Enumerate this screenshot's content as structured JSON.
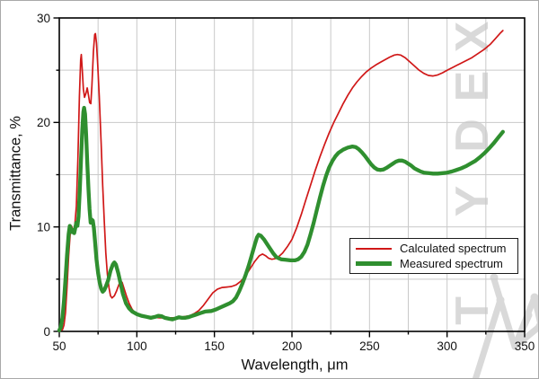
{
  "watermark": {
    "text": "TYDEX"
  },
  "colors": {
    "background": "#ffffff",
    "grid": "#c9c9c9",
    "axis": "#000000",
    "tick_label": "#111111",
    "watermark": "#d9d9d9"
  },
  "chart_data": {
    "type": "line",
    "title": "",
    "xlabel": "Wavelength, μm",
    "ylabel": "Transmittance, %",
    "xlim": [
      50,
      350
    ],
    "ylim": [
      0,
      30
    ],
    "x_major_ticks": [
      50,
      100,
      150,
      200,
      250,
      300,
      350
    ],
    "x_minor_tick_step": 25,
    "y_major_ticks": [
      0,
      10,
      20,
      30
    ],
    "y_minor_tick_step": 5,
    "grid": true,
    "grid_step": {
      "x": 25,
      "y": 5
    },
    "legend_position": "middle-right",
    "series": [
      {
        "name": "Calculated spectrum",
        "color": "#d01818",
        "width": 1.7,
        "points": [
          [
            50,
            0.1
          ],
          [
            52,
            0.15
          ],
          [
            53,
            0.6
          ],
          [
            54,
            1.8
          ],
          [
            55,
            4.2
          ],
          [
            56,
            7.2
          ],
          [
            57,
            9.3
          ],
          [
            57.8,
            10.1
          ],
          [
            58.6,
            9.8
          ],
          [
            59.2,
            9.5
          ],
          [
            60,
            10.2
          ],
          [
            61,
            12
          ],
          [
            62,
            16.5
          ],
          [
            63,
            22.5
          ],
          [
            63.8,
            26.0
          ],
          [
            64.2,
            26.5
          ],
          [
            64.8,
            25.0
          ],
          [
            65.5,
            23.2
          ],
          [
            66.3,
            22.4
          ],
          [
            67.2,
            22.8
          ],
          [
            68,
            23.3
          ],
          [
            68.8,
            22.6
          ],
          [
            69.6,
            21.9
          ],
          [
            70.3,
            21.8
          ],
          [
            71,
            23.5
          ],
          [
            72,
            26.8
          ],
          [
            72.8,
            28.4
          ],
          [
            73.3,
            28.5
          ],
          [
            74,
            27.6
          ],
          [
            74.8,
            25.5
          ],
          [
            75.8,
            22.5
          ],
          [
            77,
            18.0
          ],
          [
            78,
            14.0
          ],
          [
            79,
            10.5
          ],
          [
            80,
            7.5
          ],
          [
            81,
            5.5
          ],
          [
            82,
            4.2
          ],
          [
            83,
            3.4
          ],
          [
            84,
            3.2
          ],
          [
            85.5,
            3.4
          ],
          [
            87,
            3.9
          ],
          [
            88.5,
            4.5
          ],
          [
            89.5,
            4.8
          ],
          [
            90.5,
            4.7
          ],
          [
            92,
            4.0
          ],
          [
            93.5,
            3.3
          ],
          [
            95,
            2.7
          ],
          [
            97,
            2.1
          ],
          [
            99,
            1.75
          ],
          [
            102,
            1.5
          ],
          [
            106,
            1.4
          ],
          [
            110,
            1.35
          ],
          [
            115,
            1.3
          ],
          [
            120,
            1.3
          ],
          [
            125,
            1.3
          ],
          [
            130,
            1.4
          ],
          [
            134,
            1.5
          ],
          [
            137,
            1.7
          ],
          [
            140,
            2.0
          ],
          [
            143,
            2.5
          ],
          [
            146,
            3.1
          ],
          [
            149,
            3.7
          ],
          [
            152,
            4.05
          ],
          [
            155,
            4.2
          ],
          [
            158,
            4.25
          ],
          [
            161,
            4.3
          ],
          [
            164,
            4.45
          ],
          [
            167,
            4.8
          ],
          [
            170,
            5.3
          ],
          [
            173,
            6.0
          ],
          [
            176,
            6.7
          ],
          [
            179,
            7.25
          ],
          [
            181,
            7.4
          ],
          [
            183,
            7.25
          ],
          [
            185,
            7.0
          ],
          [
            187,
            6.9
          ],
          [
            189,
            6.95
          ],
          [
            191,
            7.1
          ],
          [
            194,
            7.5
          ],
          [
            197,
            8.1
          ],
          [
            200,
            8.8
          ],
          [
            203,
            9.9
          ],
          [
            206,
            11.2
          ],
          [
            209,
            12.6
          ],
          [
            212,
            14.0
          ],
          [
            215,
            15.4
          ],
          [
            218,
            16.7
          ],
          [
            221,
            17.9
          ],
          [
            224,
            19.0
          ],
          [
            227,
            20.0
          ],
          [
            230,
            20.9
          ],
          [
            233,
            21.8
          ],
          [
            236,
            22.6
          ],
          [
            239,
            23.3
          ],
          [
            242,
            23.9
          ],
          [
            245,
            24.4
          ],
          [
            248,
            24.85
          ],
          [
            251,
            25.2
          ],
          [
            254,
            25.5
          ],
          [
            257,
            25.75
          ],
          [
            260,
            26.0
          ],
          [
            263,
            26.25
          ],
          [
            266,
            26.45
          ],
          [
            268,
            26.5
          ],
          [
            270,
            26.45
          ],
          [
            273,
            26.2
          ],
          [
            276,
            25.8
          ],
          [
            279,
            25.4
          ],
          [
            282,
            25.0
          ],
          [
            285,
            24.7
          ],
          [
            288,
            24.5
          ],
          [
            291,
            24.45
          ],
          [
            294,
            24.55
          ],
          [
            297,
            24.75
          ],
          [
            300,
            25.0
          ],
          [
            304,
            25.3
          ],
          [
            308,
            25.6
          ],
          [
            312,
            25.9
          ],
          [
            316,
            26.2
          ],
          [
            320,
            26.6
          ],
          [
            324,
            27.0
          ],
          [
            328,
            27.5
          ],
          [
            331,
            28.0
          ],
          [
            334,
            28.5
          ],
          [
            336,
            28.8
          ]
        ]
      },
      {
        "name": "Measured spectrum",
        "color": "#2f8f2f",
        "width": 4.3,
        "points": [
          [
            50,
            0.1
          ],
          [
            51,
            0.4
          ],
          [
            52,
            1.3
          ],
          [
            53,
            2.9
          ],
          [
            54,
            5.0
          ],
          [
            55,
            7.3
          ],
          [
            56,
            9.3
          ],
          [
            56.8,
            10.1
          ],
          [
            57.5,
            9.8
          ],
          [
            58.3,
            9.5
          ],
          [
            59,
            9.7
          ],
          [
            59.6,
            9.4
          ],
          [
            60.3,
            9.9
          ],
          [
            61,
            10.4
          ],
          [
            61.7,
            10.1
          ],
          [
            62.4,
            11.0
          ],
          [
            63.2,
            13.5
          ],
          [
            64,
            16.5
          ],
          [
            64.8,
            19.3
          ],
          [
            65.5,
            21.0
          ],
          [
            66,
            21.4
          ],
          [
            66.6,
            20.8
          ],
          [
            67.3,
            18.8
          ],
          [
            68,
            16.2
          ],
          [
            68.8,
            13.6
          ],
          [
            69.5,
            11.7
          ],
          [
            70.2,
            10.4
          ],
          [
            70.9,
            10.7
          ],
          [
            71.6,
            10.6
          ],
          [
            72.3,
            9.9
          ],
          [
            73,
            8.7
          ],
          [
            74,
            6.9
          ],
          [
            75,
            5.6
          ],
          [
            76,
            4.7
          ],
          [
            77,
            4.1
          ],
          [
            78,
            3.8
          ],
          [
            79,
            3.95
          ],
          [
            80,
            4.3
          ],
          [
            81.5,
            4.9
          ],
          [
            83,
            5.8
          ],
          [
            84.5,
            6.4
          ],
          [
            85.5,
            6.6
          ],
          [
            86.5,
            6.4
          ],
          [
            88,
            5.6
          ],
          [
            89.5,
            4.6
          ],
          [
            91,
            3.6
          ],
          [
            93,
            2.7
          ],
          [
            95,
            2.2
          ],
          [
            97,
            1.9
          ],
          [
            100,
            1.65
          ],
          [
            103,
            1.5
          ],
          [
            106,
            1.4
          ],
          [
            109,
            1.3
          ],
          [
            112,
            1.4
          ],
          [
            114,
            1.5
          ],
          [
            116,
            1.45
          ],
          [
            118,
            1.3
          ],
          [
            121,
            1.2
          ],
          [
            123,
            1.15
          ],
          [
            125,
            1.25
          ],
          [
            127,
            1.35
          ],
          [
            129,
            1.3
          ],
          [
            131,
            1.3
          ],
          [
            133,
            1.35
          ],
          [
            135,
            1.45
          ],
          [
            138,
            1.6
          ],
          [
            141,
            1.75
          ],
          [
            144,
            1.9
          ],
          [
            148,
            1.95
          ],
          [
            151,
            2.1
          ],
          [
            154,
            2.3
          ],
          [
            157,
            2.5
          ],
          [
            160,
            2.7
          ],
          [
            162,
            2.9
          ],
          [
            164,
            3.25
          ],
          [
            166,
            3.85
          ],
          [
            168,
            4.55
          ],
          [
            170,
            5.35
          ],
          [
            172,
            6.25
          ],
          [
            174,
            7.25
          ],
          [
            176,
            8.3
          ],
          [
            177.5,
            9.0
          ],
          [
            178.5,
            9.25
          ],
          [
            180,
            9.15
          ],
          [
            182,
            8.8
          ],
          [
            184,
            8.35
          ],
          [
            186,
            7.9
          ],
          [
            188,
            7.45
          ],
          [
            190,
            7.1
          ],
          [
            193,
            6.9
          ],
          [
            196,
            6.85
          ],
          [
            199,
            6.8
          ],
          [
            202,
            6.8
          ],
          [
            204,
            6.9
          ],
          [
            206,
            7.15
          ],
          [
            208,
            7.6
          ],
          [
            210,
            8.3
          ],
          [
            212,
            9.3
          ],
          [
            214,
            10.4
          ],
          [
            216,
            11.6
          ],
          [
            218,
            12.8
          ],
          [
            220,
            13.9
          ],
          [
            222,
            14.9
          ],
          [
            224,
            15.7
          ],
          [
            226,
            16.3
          ],
          [
            228,
            16.75
          ],
          [
            230,
            17.1
          ],
          [
            233,
            17.4
          ],
          [
            236,
            17.6
          ],
          [
            239,
            17.7
          ],
          [
            241,
            17.65
          ],
          [
            243,
            17.45
          ],
          [
            245,
            17.15
          ],
          [
            247,
            16.8
          ],
          [
            249,
            16.4
          ],
          [
            251,
            16.0
          ],
          [
            253,
            15.7
          ],
          [
            255,
            15.5
          ],
          [
            257,
            15.45
          ],
          [
            259,
            15.5
          ],
          [
            261,
            15.65
          ],
          [
            263,
            15.85
          ],
          [
            265,
            16.05
          ],
          [
            267,
            16.25
          ],
          [
            269,
            16.35
          ],
          [
            271,
            16.35
          ],
          [
            273,
            16.25
          ],
          [
            275,
            16.05
          ],
          [
            277,
            15.85
          ],
          [
            279,
            15.6
          ],
          [
            281,
            15.45
          ],
          [
            283,
            15.3
          ],
          [
            285,
            15.2
          ],
          [
            288,
            15.15
          ],
          [
            291,
            15.1
          ],
          [
            294,
            15.1
          ],
          [
            297,
            15.15
          ],
          [
            300,
            15.2
          ],
          [
            303,
            15.3
          ],
          [
            306,
            15.45
          ],
          [
            309,
            15.6
          ],
          [
            312,
            15.8
          ],
          [
            315,
            16.05
          ],
          [
            318,
            16.3
          ],
          [
            321,
            16.65
          ],
          [
            324,
            17.05
          ],
          [
            327,
            17.5
          ],
          [
            330,
            18.0
          ],
          [
            333,
            18.55
          ],
          [
            336,
            19.1
          ]
        ]
      }
    ]
  }
}
